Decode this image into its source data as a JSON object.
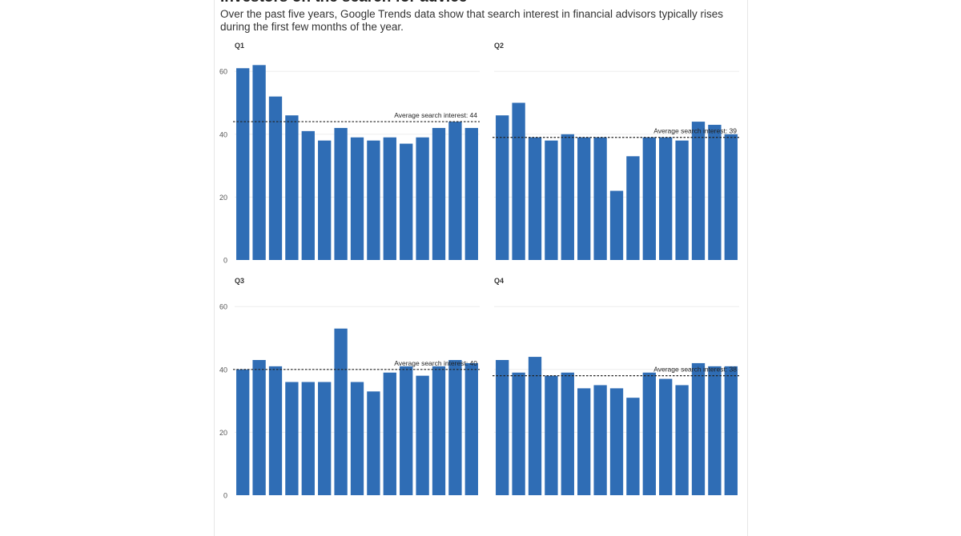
{
  "header": {
    "title": "Investors on the search for advice",
    "subtitle": "Over the past five years, Google Trends data show that search interest in financial advisors typically rises during the first few months of the year."
  },
  "colors": {
    "bar": "#2f6db5",
    "gridline": "#eeeeee",
    "text": "#333333"
  },
  "chart_data": [
    {
      "type": "bar",
      "title": "Q1",
      "ylim": [
        0,
        60
      ],
      "yticks": [
        "0",
        "20",
        "40",
        "60"
      ],
      "values": [
        61,
        62,
        52,
        46,
        41,
        38,
        42,
        39,
        38,
        39,
        37,
        39,
        42,
        44,
        42
      ],
      "average": 44,
      "average_label": "Average search interest: 44"
    },
    {
      "type": "bar",
      "title": "Q2",
      "ylim": [
        0,
        60
      ],
      "yticks": [],
      "values": [
        46,
        50,
        39,
        38,
        40,
        39,
        39,
        22,
        33,
        39,
        39,
        38,
        44,
        43,
        40
      ],
      "average": 39,
      "average_label": "Average search interest: 39"
    },
    {
      "type": "bar",
      "title": "Q3",
      "ylim": [
        0,
        60
      ],
      "yticks": [
        "0",
        "20",
        "40",
        "60"
      ],
      "values": [
        40,
        43,
        41,
        36,
        36,
        36,
        53,
        36,
        33,
        39,
        41,
        38,
        41,
        43,
        42
      ],
      "average": 40,
      "average_label": "Average search interest: 40"
    },
    {
      "type": "bar",
      "title": "Q4",
      "ylim": [
        0,
        60
      ],
      "yticks": [],
      "values": [
        43,
        39,
        44,
        38,
        39,
        34,
        35,
        34,
        31,
        39,
        37,
        35,
        42,
        41,
        41
      ],
      "average": 38,
      "average_label": "Average search interest: 38"
    }
  ]
}
